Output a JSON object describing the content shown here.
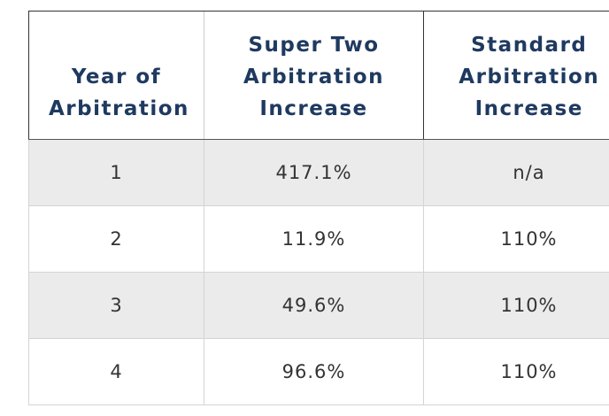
{
  "table": {
    "header": [
      "Year of Arbitration",
      "Super Two Arbitration Increase",
      "Standard Arbitration Increase"
    ],
    "rows": [
      [
        "1",
        "417.1%",
        "n/a"
      ],
      [
        "2",
        "11.9%",
        "110%"
      ],
      [
        "3",
        "49.6%",
        "110%"
      ],
      [
        "4",
        "96.6%",
        "110%"
      ]
    ]
  }
}
